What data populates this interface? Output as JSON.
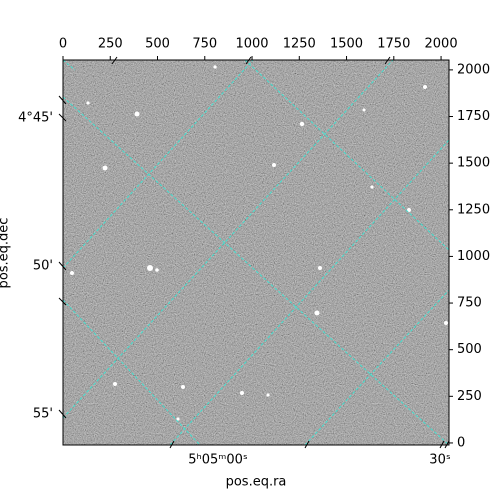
{
  "chart_data": {
    "type": "image",
    "xlim": [
      0,
      2042
    ],
    "xticks": [
      0,
      250,
      500,
      750,
      1000,
      1250,
      1500,
      1750,
      2000
    ],
    "ylim": [
      -11,
      2053
    ],
    "yticks": [
      0,
      250,
      500,
      750,
      1000,
      1250,
      1500,
      1750,
      2000
    ],
    "dec_ticks": [
      "4°45'",
      "50'",
      "55'"
    ],
    "ra_ticks": [
      "5ʰ05ᵐ00ˢ",
      "30ˢ"
    ],
    "xlabel": "pos.eq.ra",
    "ylabel": "pos.eq.dec",
    "grid_color": "#40e0d0"
  }
}
